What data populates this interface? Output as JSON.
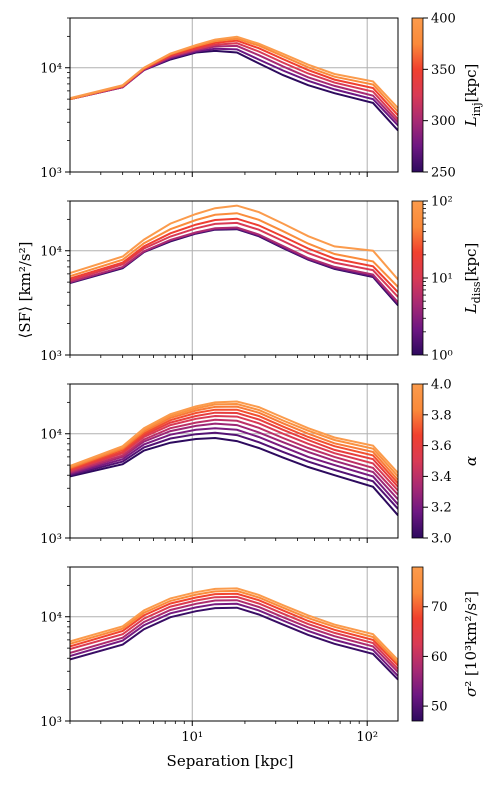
{
  "shared": {
    "xlabel": "Separation [kpc]",
    "ylabel": "⟨SF⟩ [km²/s²]",
    "xscale": "log",
    "yscale": "log",
    "xlim": [
      2,
      150
    ],
    "ylim": [
      1000,
      30000
    ],
    "x_major_ticks": [
      {
        "value": 10,
        "label": "10¹"
      },
      {
        "value": 100,
        "label": "10²"
      }
    ],
    "y_major_ticks": [
      {
        "value": 1000,
        "label": "10³"
      },
      {
        "value": 10000,
        "label": "10⁴"
      }
    ],
    "grid": "major",
    "x": [
      2,
      4,
      5.3,
      7.5,
      10.5,
      13.5,
      18,
      24,
      33,
      46,
      65,
      108,
      150
    ]
  },
  "colormap": [
    "#2d0a5e",
    "#6d1782",
    "#a82a73",
    "#d93a55",
    "#f0402e",
    "#fa8a3a",
    "#fb9b4c"
  ],
  "chart_data": [
    {
      "type": "line",
      "colorbar": {
        "label": "L_inj [kpc]",
        "label_main": "L",
        "label_sub": "inj",
        "label_unit": "[kpc]",
        "scale": "linear",
        "range": [
          250,
          400
        ],
        "ticks": [
          {
            "value": 250,
            "label": "250"
          },
          {
            "value": 300,
            "label": "300"
          },
          {
            "value": 350,
            "label": "350"
          },
          {
            "value": 400,
            "label": "400"
          }
        ]
      },
      "series": [
        {
          "param": 250,
          "values": [
            5000,
            6500,
            9500,
            12000,
            14000,
            14500,
            14000,
            11000,
            8500,
            6800,
            5700,
            4600,
            2500
          ]
        },
        {
          "param": 275,
          "values": [
            5000,
            6500,
            9500,
            12300,
            14300,
            15200,
            15000,
            12000,
            9400,
            7500,
            6200,
            5000,
            2800
          ]
        },
        {
          "param": 300,
          "values": [
            5000,
            6500,
            9600,
            12600,
            14700,
            16000,
            16200,
            13200,
            10300,
            8100,
            6700,
            5400,
            3000
          ]
        },
        {
          "param": 325,
          "values": [
            5000,
            6600,
            9700,
            12900,
            15100,
            16600,
            17200,
            14300,
            11200,
            8800,
            7200,
            5900,
            3200
          ]
        },
        {
          "param": 350,
          "values": [
            5000,
            6700,
            9800,
            13200,
            15600,
            17300,
            18200,
            15400,
            12100,
            9500,
            7700,
            6400,
            3500
          ]
        },
        {
          "param": 375,
          "values": [
            5000,
            6700,
            9900,
            13500,
            16100,
            18000,
            19000,
            16300,
            12900,
            10100,
            8200,
            6900,
            3800
          ]
        },
        {
          "param": 400,
          "values": [
            5100,
            6800,
            10000,
            13700,
            16500,
            18600,
            19800,
            17000,
            13600,
            10700,
            8700,
            7400,
            4100
          ]
        }
      ]
    },
    {
      "type": "line",
      "colorbar": {
        "label": "L_diss [kpc]",
        "label_main": "L",
        "label_sub": "diss",
        "label_unit": "[kpc]",
        "scale": "log",
        "range": [
          1,
          100
        ],
        "ticks": [
          {
            "value": 1,
            "label": "10⁰"
          },
          {
            "value": 10,
            "label": "10¹"
          },
          {
            "value": 100,
            "label": "10²"
          }
        ]
      },
      "series": [
        {
          "param": 1,
          "values": [
            4900,
            6800,
            9700,
            12300,
            14600,
            15900,
            16100,
            13800,
            10600,
            8200,
            6700,
            5600,
            3000
          ]
        },
        {
          "param": 2,
          "values": [
            4950,
            6900,
            9800,
            12500,
            14800,
            16100,
            16300,
            14000,
            10800,
            8300,
            6800,
            5700,
            3100
          ]
        },
        {
          "param": 5,
          "values": [
            5000,
            7000,
            9900,
            12700,
            15000,
            16400,
            16700,
            14300,
            11100,
            8500,
            7000,
            5900,
            3200
          ]
        },
        {
          "param": 10,
          "values": [
            5200,
            7400,
            10500,
            13700,
            16400,
            18100,
            18500,
            15900,
            12400,
            9500,
            7700,
            6500,
            3600
          ]
        },
        {
          "param": 20,
          "values": [
            5400,
            7700,
            11000,
            14700,
            17800,
            19700,
            20300,
            17500,
            13700,
            10500,
            8400,
            7100,
            4000
          ]
        },
        {
          "param": 50,
          "values": [
            5700,
            8200,
            11800,
            16100,
            19700,
            22100,
            22900,
            19800,
            15400,
            11700,
            9300,
            7900,
            4500
          ]
        },
        {
          "param": 100,
          "values": [
            6100,
            8800,
            12800,
            18200,
            22500,
            25600,
            27100,
            23500,
            18200,
            13800,
            11000,
            10000,
            5300
          ]
        }
      ]
    },
    {
      "type": "line",
      "colorbar": {
        "label": "α",
        "label_main": "α",
        "label_sub": "",
        "label_unit": "",
        "scale": "linear",
        "range": [
          3.0,
          4.0
        ],
        "ticks": [
          {
            "value": 3.0,
            "label": "3.0"
          },
          {
            "value": 3.2,
            "label": "3.2"
          },
          {
            "value": 3.4,
            "label": "3.4"
          },
          {
            "value": 3.6,
            "label": "3.6"
          },
          {
            "value": 3.8,
            "label": "3.8"
          },
          {
            "value": 4.0,
            "label": "4.0"
          }
        ]
      },
      "series": [
        {
          "param": 3.0,
          "values": [
            3900,
            5100,
            6900,
            8200,
            8900,
            9100,
            8500,
            7300,
            5900,
            4800,
            4000,
            3100,
            1650
          ]
        },
        {
          "param": 3.1,
          "values": [
            4000,
            5400,
            7400,
            9000,
            9900,
            10200,
            9700,
            8300,
            6700,
            5400,
            4500,
            3500,
            1900
          ]
        },
        {
          "param": 3.2,
          "values": [
            4100,
            5700,
            7900,
            9800,
            10900,
            11300,
            10900,
            9300,
            7500,
            6000,
            5000,
            3900,
            2100
          ]
        },
        {
          "param": 3.3,
          "values": [
            4200,
            6000,
            8400,
            10600,
            11900,
            12500,
            12100,
            10300,
            8300,
            6700,
            5500,
            4300,
            2350
          ]
        },
        {
          "param": 3.4,
          "values": [
            4300,
            6200,
            8800,
            11300,
            12800,
            13600,
            13300,
            11400,
            9100,
            7300,
            6000,
            4700,
            2600
          ]
        },
        {
          "param": 3.5,
          "values": [
            4400,
            6500,
            9300,
            12100,
            13900,
            14800,
            14600,
            12600,
            10000,
            8000,
            6500,
            5200,
            2850
          ]
        },
        {
          "param": 3.6,
          "values": [
            4500,
            6700,
            9700,
            12800,
            14800,
            15900,
            15800,
            13700,
            10900,
            8700,
            7000,
            5700,
            3100
          ]
        },
        {
          "param": 3.7,
          "values": [
            4600,
            7000,
            10100,
            13500,
            15800,
            17000,
            17000,
            14800,
            11700,
            9300,
            7600,
            6200,
            3350
          ]
        },
        {
          "param": 3.8,
          "values": [
            4700,
            7200,
            10500,
            14200,
            16700,
            18100,
            18200,
            15900,
            12600,
            10000,
            8100,
            6700,
            3600
          ]
        },
        {
          "param": 3.9,
          "values": [
            4800,
            7400,
            10900,
            14800,
            17500,
            19100,
            19300,
            16900,
            13400,
            10700,
            8700,
            7200,
            3900
          ]
        },
        {
          "param": 4.0,
          "values": [
            4900,
            7600,
            11300,
            15400,
            18300,
            20000,
            20400,
            18000,
            14300,
            11300,
            9200,
            7700,
            4200
          ]
        }
      ]
    },
    {
      "type": "line",
      "colorbar": {
        "label": "σ² [10³km²/s²]",
        "label_main": "σ",
        "label_sub": "",
        "label_unit": "² [10³km²/s²]",
        "scale": "linear",
        "range": [
          47,
          78
        ],
        "ticks": [
          {
            "value": 50,
            "label": "50"
          },
          {
            "value": 60,
            "label": "60"
          },
          {
            "value": 70,
            "label": "70"
          }
        ]
      },
      "series": [
        {
          "param": 48,
          "values": [
            3900,
            5400,
            7600,
            9900,
            11300,
            12100,
            12200,
            10500,
            8400,
            6700,
            5500,
            4400,
            2500
          ]
        },
        {
          "param": 53,
          "values": [
            4200,
            5900,
            8300,
            10800,
            12300,
            13200,
            13300,
            11500,
            9200,
            7300,
            6000,
            4800,
            2700
          ]
        },
        {
          "param": 58,
          "values": [
            4500,
            6300,
            8900,
            11600,
            13300,
            14300,
            14400,
            12400,
            9900,
            7900,
            6500,
            5200,
            2950
          ]
        },
        {
          "param": 63,
          "values": [
            4900,
            6800,
            9600,
            12500,
            14300,
            15400,
            15500,
            13400,
            10700,
            8500,
            7000,
            5600,
            3150
          ]
        },
        {
          "param": 68,
          "values": [
            5200,
            7300,
            10300,
            13400,
            15300,
            16500,
            16600,
            14400,
            11500,
            9100,
            7500,
            6000,
            3400
          ]
        },
        {
          "param": 73,
          "values": [
            5500,
            7700,
            10900,
            14200,
            16300,
            17500,
            17700,
            15300,
            12200,
            9700,
            8000,
            6400,
            3600
          ]
        },
        {
          "param": 78,
          "values": [
            5800,
            8100,
            11500,
            15000,
            17200,
            18500,
            18700,
            16200,
            12900,
            10300,
            8400,
            6800,
            3850
          ]
        }
      ]
    }
  ]
}
